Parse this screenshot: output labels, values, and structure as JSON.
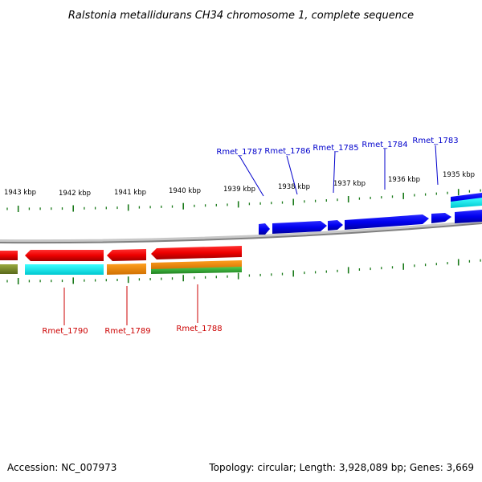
{
  "title": "Ralstonia metallidurans CH34 chromosome 1, complete sequence",
  "footer": {
    "accession": "Accession: NC_007973",
    "info": "Topology: circular; Length: 3,928,089 bp; Genes: 3,669"
  },
  "scale": {
    "unit": "kbp",
    "ticks": [
      "1943 kbp",
      "1942 kbp",
      "1941 kbp",
      "1940 kbp",
      "1939 kbp",
      "1938 kbp",
      "1937 kbp",
      "1936 kbp",
      "1935 kbp"
    ]
  },
  "genes": {
    "forward": [
      "Rmet_1787",
      "Rmet_1786",
      "Rmet_1785",
      "Rmet_1784",
      "Rmet_1783"
    ],
    "reverse": [
      "Rmet_1790",
      "Rmet_1789",
      "Rmet_1788"
    ]
  },
  "colors": {
    "forward_gene": "#0000ee",
    "reverse_gene": "#ee0000",
    "tick": "#1a7a1a",
    "backbone": "#808080",
    "cyan": "#00e5e5",
    "orange": "#f08c00",
    "green": "#2ca02c",
    "olive": "#7a8a2a"
  }
}
